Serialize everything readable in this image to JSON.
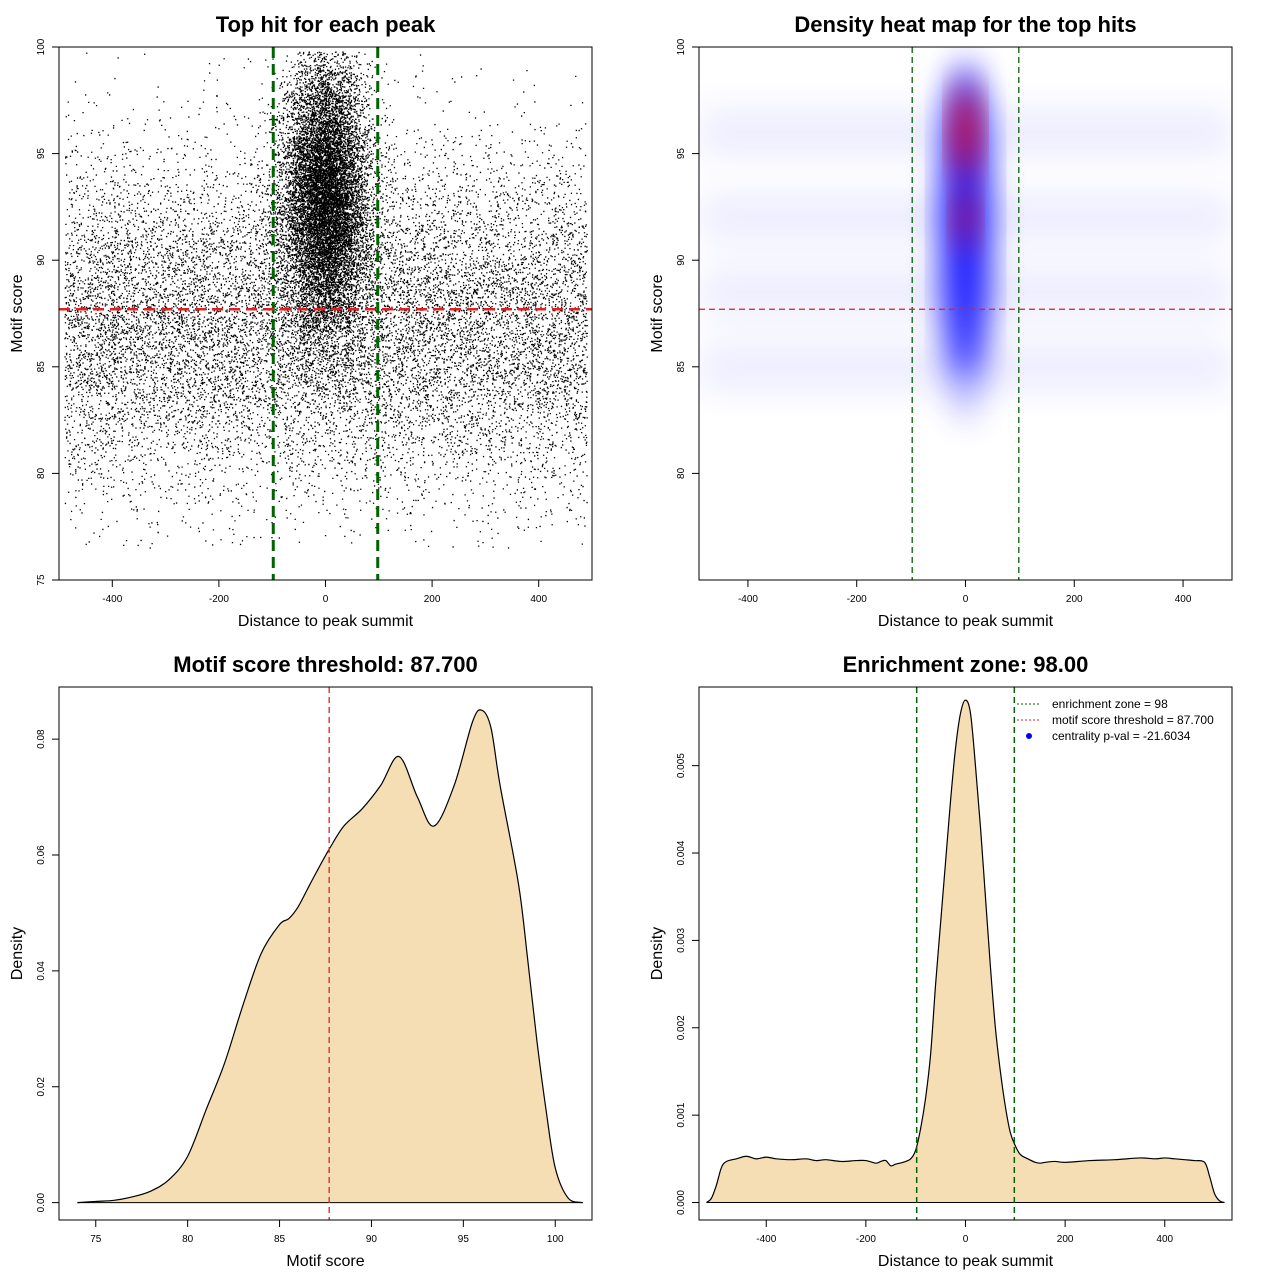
{
  "colors": {
    "points": "#000000",
    "threshold_line": "#e02020",
    "zone_line": "#006400",
    "density_fill": "#f5deb3",
    "heat_low": "#ffffff",
    "heat_mid": "#0000ff",
    "heat_high": "#ff0000",
    "legend_point": "#0000ff"
  },
  "chart_data": [
    {
      "id": "scatter",
      "type": "scatter",
      "title": "Top hit for each peak",
      "xlabel": "Distance to peak summit",
      "ylabel": "Motif score",
      "xlim": [
        -500,
        500
      ],
      "ylim": [
        75,
        100
      ],
      "xticks": [
        "-400",
        "-200",
        "0",
        "200",
        "400"
      ],
      "xtick_values": [
        -400,
        -200,
        0,
        200,
        400
      ],
      "yticks": [
        "75",
        "80",
        "85",
        "90",
        "95",
        "100"
      ],
      "ytick_values": [
        75,
        80,
        85,
        90,
        95,
        100
      ],
      "hlines": [
        87.7
      ],
      "vlines": [
        -98,
        98
      ],
      "point_distribution": {
        "total_points": 26000,
        "central_fraction": 0.45,
        "central_x_sd": 40,
        "central_score_mean": 93.0,
        "central_score_sd": 3.2,
        "background_score_mean": 87.0,
        "background_score_sd": 4.0,
        "x_range": [
          -490,
          490
        ],
        "score_range": [
          76.5,
          99.8
        ]
      }
    },
    {
      "id": "heatmap",
      "type": "heatmap",
      "title": "Density heat map for the top hits",
      "xlabel": "Distance to peak summit",
      "ylabel": "Motif score",
      "xlim": [
        -490,
        490
      ],
      "ylim": [
        75,
        100
      ],
      "xticks": [
        "-400",
        "-200",
        "0",
        "200",
        "400"
      ],
      "xtick_values": [
        -400,
        -200,
        0,
        200,
        400
      ],
      "yticks": [
        "80",
        "85",
        "90",
        "95",
        "100"
      ],
      "ytick_values": [
        80,
        85,
        90,
        95,
        100
      ],
      "hlines": [
        87.7
      ],
      "vlines": [
        -98,
        98
      ],
      "hotspot": {
        "x": 0,
        "score_peak": 96,
        "x_sd": 25,
        "score_range": [
          84,
          99
        ]
      },
      "background_bands": [
        85,
        88.5,
        92,
        96
      ]
    },
    {
      "id": "score-density",
      "type": "area",
      "title": "Motif score threshold: 87.700",
      "xlabel": "Motif score",
      "ylabel": "Density",
      "xlim": [
        73,
        102
      ],
      "ylim": [
        -0.003,
        0.089
      ],
      "xticks": [
        "75",
        "80",
        "85",
        "90",
        "95",
        "100"
      ],
      "xtick_values": [
        75,
        80,
        85,
        90,
        95,
        100
      ],
      "yticks": [
        "0.00",
        "0.02",
        "0.04",
        "0.06",
        "0.08"
      ],
      "ytick_values": [
        0.0,
        0.02,
        0.04,
        0.06,
        0.08
      ],
      "vlines": [
        87.7
      ],
      "x": [
        74,
        75,
        76,
        77,
        78,
        79,
        80,
        81,
        82,
        83,
        84,
        85,
        85.5,
        86,
        86.5,
        87,
        87.7,
        88.5,
        89.5,
        90.5,
        91.5,
        92.5,
        93.4,
        94.5,
        95.5,
        96,
        96.5,
        97,
        98,
        98.5,
        99,
        99.5,
        100,
        100.7,
        101.5
      ],
      "y": [
        0.0,
        0.0002,
        0.0004,
        0.001,
        0.002,
        0.004,
        0.008,
        0.016,
        0.024,
        0.034,
        0.043,
        0.048,
        0.049,
        0.051,
        0.054,
        0.057,
        0.061,
        0.065,
        0.068,
        0.072,
        0.077,
        0.07,
        0.065,
        0.072,
        0.083,
        0.085,
        0.082,
        0.072,
        0.055,
        0.042,
        0.028,
        0.016,
        0.006,
        0.0008,
        0.0
      ]
    },
    {
      "id": "distance-density",
      "type": "area",
      "title": "Enrichment zone: 98.00",
      "xlabel": "Distance to peak summit",
      "ylabel": "Density",
      "xlim": [
        -535,
        535
      ],
      "ylim": [
        -0.0002,
        0.0059
      ],
      "xticks": [
        "-400",
        "-200",
        "0",
        "200",
        "400"
      ],
      "xtick_values": [
        -400,
        -200,
        0,
        200,
        400
      ],
      "yticks": [
        "0.000",
        "0.001",
        "0.002",
        "0.003",
        "0.004",
        "0.005"
      ],
      "ytick_values": [
        0.0,
        0.001,
        0.002,
        0.003,
        0.004,
        0.005
      ],
      "vlines": [
        -98,
        98
      ],
      "x": [
        -520,
        -510,
        -500,
        -490,
        -480,
        -460,
        -440,
        -420,
        -400,
        -380,
        -350,
        -320,
        -300,
        -280,
        -250,
        -220,
        -200,
        -180,
        -170,
        -160,
        -150,
        -140,
        -125,
        -110,
        -100,
        -90,
        -80,
        -70,
        -60,
        -50,
        -40,
        -30,
        -20,
        -10,
        0,
        10,
        20,
        30,
        40,
        50,
        60,
        70,
        80,
        90,
        100,
        110,
        125,
        140,
        150,
        160,
        180,
        200,
        250,
        300,
        350,
        380,
        400,
        420,
        440,
        460,
        480,
        490,
        500,
        510,
        520
      ],
      "y": [
        0.0,
        5e-05,
        0.0002,
        0.0004,
        0.00047,
        0.0005,
        0.00053,
        0.0005,
        0.00052,
        0.0005,
        0.00049,
        0.0005,
        0.00048,
        0.00049,
        0.00047,
        0.00048,
        0.00048,
        0.00045,
        0.00047,
        0.00048,
        0.00042,
        0.00044,
        0.00046,
        0.0005,
        0.0006,
        0.00085,
        0.0012,
        0.0017,
        0.0025,
        0.0032,
        0.0039,
        0.0046,
        0.0052,
        0.0056,
        0.00575,
        0.0056,
        0.005,
        0.0043,
        0.0035,
        0.0027,
        0.002,
        0.0015,
        0.0011,
        0.0008,
        0.00065,
        0.00055,
        0.0005,
        0.00046,
        0.00045,
        0.00046,
        0.00047,
        0.00046,
        0.00048,
        0.00049,
        0.00051,
        0.0005,
        0.00051,
        0.0005,
        0.00049,
        0.00048,
        0.00046,
        0.0003,
        0.0001,
        2e-05,
        0.0
      ]
    }
  ],
  "legend": {
    "items": [
      {
        "label": "enrichment zone = 98",
        "style": "dotted-line",
        "color_key": "zone_line"
      },
      {
        "label": "motif score threshold = 87.700",
        "style": "dotted-line",
        "color_key": "threshold_line"
      },
      {
        "label": "centrality p-val = -21.6034",
        "style": "point",
        "color_key": "legend_point"
      }
    ]
  }
}
